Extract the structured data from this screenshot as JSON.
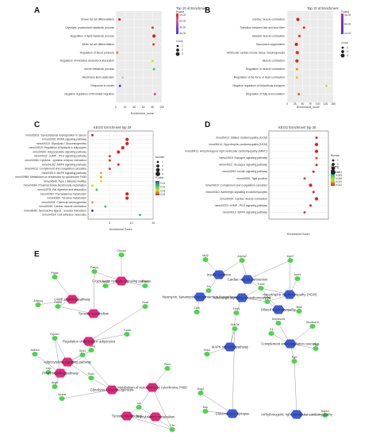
{
  "colors": {
    "dot_low": "#e02020",
    "dot_mid_orange": "#f0a020",
    "dot_mid_yellow": "#d8e020",
    "dot_mid_green": "#30d060",
    "dot_high": "#4040e0",
    "pathway_node_pink": "#e0287a",
    "pathway_node_blue": "#3a5ad8",
    "gene_node_green": "#4ad64a",
    "edge_gray": "#9a9a9a"
  },
  "chart_data": [
    {
      "panel": "A",
      "type": "scatter",
      "title": "Top 10 of Enrichment",
      "xlabel": "Enrichment_score",
      "ylabel": "",
      "xlim": [
        0,
        100
      ],
      "xticks": [
        "0",
        "20",
        "40",
        "60",
        "80",
        "100"
      ],
      "grid": true,
      "categories": [
        "Brown fat cell differentiation",
        "Glycolytic process/cell metabolic process",
        "Regulation of lipid metabolic process",
        "White fat cell differentiation",
        "Regulation of blood pressure",
        "Regulation of intestinal cholesterol absorption",
        "Amine metabolic process",
        "Membrane lipid catabolism",
        "Response to insulin",
        "Negative regulation of fibroblast migration"
      ],
      "values": [
        8,
        80,
        83,
        82,
        3,
        80,
        83,
        15,
        9,
        85
      ],
      "dot_colors": [
        "#e02020",
        "#e03a20",
        "#e02020",
        "#e04020",
        "#f09020",
        "#e0e020",
        "#30d060",
        "#c8c8c8",
        "#4040e0",
        "#e040a0"
      ],
      "dot_sizes": [
        1,
        1,
        2,
        1,
        1,
        1,
        1,
        1,
        1,
        1
      ],
      "legend_title": "P.value",
      "legend_ticks": [
        "1e-02",
        "2e-02",
        "3e-02",
        "4e-02"
      ],
      "size_title": "Count",
      "size_ticks": [
        "1",
        "2",
        "3"
      ]
    },
    {
      "panel": "B",
      "type": "scatter",
      "title": "Top 10 of Enrichment",
      "xlabel": "Enrichment_score",
      "ylabel": "",
      "xlim": [
        0,
        150
      ],
      "xticks": [
        "0",
        "25",
        "50",
        "75",
        "100",
        "125",
        "150"
      ],
      "grid": true,
      "categories": [
        "Cardiac muscle contraction",
        "Transition between fast and slow fiber",
        "Skeletal muscle contraction",
        "Sarcomere organization",
        "Ventricular cardiac muscle tissue morphogenesis",
        "Muscle contraction",
        "Regulation of muscle contraction",
        "Regulation of the force of heart contraction",
        "Negative regulation of intracellular transport",
        "Regulation of fatty acid oxidation"
      ],
      "values": [
        35,
        55,
        40,
        30,
        33,
        32,
        32,
        32,
        128,
        38
      ],
      "dot_colors": [
        "#e02020",
        "#e02020",
        "#e02020",
        "#e02020",
        "#e03020",
        "#e03020",
        "#f09020",
        "#f0c020",
        "#d8e020",
        "#e06020"
      ],
      "dot_sizes": [
        2,
        1,
        1,
        2,
        2,
        2,
        1,
        1,
        1,
        1
      ],
      "legend_title": "P.value",
      "legend_ticks": [
        "4e-03",
        "8e-03",
        "1e-02"
      ],
      "size_title": "Count",
      "size_ticks": [
        "2",
        "3",
        "4"
      ]
    },
    {
      "panel": "C",
      "type": "scatter",
      "title": "KEGG Enrichment top 20",
      "xlabel": "Enrichment Score",
      "ylabel": "",
      "xlim": [
        0,
        15
      ],
      "xticks": [
        "5",
        "10",
        "15"
      ],
      "grid": true,
      "categories": [
        "mmu05202: Transcriptional misregulation in cancer",
        "mmu03320: PPAR signaling pathway",
        "mmu00010: Glycolysis / Gluconeogenesis",
        "mmu04923: Regulation of lipolysis in adipocytes",
        "mmu04920: Adipocytokine signaling pathway",
        "mmu04022: cGMP - PKG signaling pathway",
        "mmu04060: Cytokine - cytokine receptor interaction",
        "mmu04152: AMPK signaling pathway",
        "mmu04610: Complement and coagulation cascades",
        "mmu04010: MAPK signaling pathway",
        "mmu00980: Metabolism of xenobiotics by cytochrome P450",
        "mmu04940: Type I diabetes mellitus",
        "mmu04964: Proximal tubule bicarbonate reclamation",
        "mmu04975: Fat digestion and absorption",
        "mmu00360: Phenylalanine metabolism",
        "mmu00350: Tyrosine metabolism",
        "mmu05204: Chemical carcinogenesis",
        "mmu04260: Cardiac muscle contraction",
        "mmu04080: Neuroactive ligand - receptor interaction",
        "mmu04514: Cell adhesion molecules"
      ],
      "values": [
        1,
        9,
        9,
        8,
        7,
        5,
        5,
        7,
        5,
        3,
        3,
        3,
        1,
        2,
        9,
        9,
        1,
        4,
        1,
        12
      ],
      "dot_colors": [
        "#e02020",
        "#e02020",
        "#e02020",
        "#e02020",
        "#e02020",
        "#e04020",
        "#e04020",
        "#e02020",
        "#e04020",
        "#f0a020",
        "#f0a020",
        "#d8e020",
        "#d8e020",
        "#30d060",
        "#e02020",
        "#e02020",
        "#f0a020",
        "#30d060",
        "#4040e0",
        "#30d060"
      ],
      "dot_sizes": [
        1,
        2,
        2,
        2,
        2,
        1,
        1,
        1,
        1,
        1,
        1,
        1,
        1,
        1,
        2,
        2,
        1,
        1,
        1,
        1
      ],
      "legend_title": "P.value",
      "legend_ticks": [
        "0.01",
        "0.02",
        "0.03",
        "0.04"
      ],
      "size_title": "Number",
      "size_ticks": [
        "1",
        "2",
        "3",
        "4"
      ]
    },
    {
      "panel": "D",
      "type": "scatter",
      "title": "KEGG Enrichment top 20",
      "xlabel": "Enrichment Score",
      "ylabel": "",
      "xlim": [
        0,
        10
      ],
      "xticks": [],
      "grid": true,
      "categories": [
        "mmu05410: Dilated cardiomyopathy (DCM)",
        "mmu05414: Hypertrophic cardiomyopathy (HCM)",
        "mmu05412: Arrhythmogenic right ventricular cardiomyopathy (ARVC)",
        "mmu04915: Estrogen signaling pathway",
        "mmu04922: Glucagon signaling pathway",
        "mmu04910: Insulin signaling pathway",
        "mmu04530: Tight junction",
        "mmu04610: Complement and coagulation cascades",
        "mmu05410: Adrenergic signaling in cardiomyocytes",
        "mmu04260: Cardiac muscle contraction",
        "mmu04022: cGMP - PKG signaling pathway",
        "mmu04010: MAPK signaling pathway"
      ],
      "values": [
        8,
        8,
        8,
        8,
        8,
        7.5,
        6,
        7,
        7.5,
        8,
        7,
        6
      ],
      "dot_colors": [
        "#e02020",
        "#e02020",
        "#e02020",
        "#e04020",
        "#e02020",
        "#e02020",
        "#e04020",
        "#e02020",
        "#e02020",
        "#e02020",
        "#e02020",
        "#e04020"
      ],
      "dot_sizes": [
        1,
        2,
        2,
        1,
        1,
        1,
        1,
        2,
        1,
        2,
        1,
        1
      ],
      "legend_title": "P.value",
      "legend_ticks": [
        "0.004",
        "0.006",
        "0.008",
        "0.010",
        "0.012"
      ],
      "size_title": "Number",
      "size_ticks": [
        "1",
        "2",
        "3",
        "4"
      ]
    }
  ],
  "panels": {
    "a": "A",
    "b": "B",
    "c": "C",
    "d": "D",
    "e": "E"
  },
  "network": {
    "pathways": [
      {
        "id": "p1",
        "label": "Tyrosine metabolism",
        "color": "pink"
      },
      {
        "id": "p2",
        "label": "C-type lectin receptor signaling pathway",
        "color": "pink"
      },
      {
        "id": "p3",
        "label": "cAMP signaling pathway",
        "color": "pink"
      },
      {
        "id": "p4",
        "label": "Regulation of lipolysis in adipocytes",
        "color": "pink"
      },
      {
        "id": "p5",
        "label": "Adipocytokine signaling pathway",
        "color": "pink"
      },
      {
        "id": "p6",
        "label": "PPAR signaling pathway",
        "color": "pink"
      },
      {
        "id": "p7",
        "label": "Glycolysis / Gluconeogenesis",
        "color": "pink"
      },
      {
        "id": "p8",
        "label": "Metabolism of xenobiotics by cytochrome P450",
        "color": "pink"
      },
      {
        "id": "p9",
        "label": "Tyrosine metabolism",
        "color": "pink"
      },
      {
        "id": "p10",
        "label": "Phenylalanine metabolism",
        "color": "pink"
      },
      {
        "id": "b1",
        "label": "Insulin secretion",
        "color": "blue"
      },
      {
        "id": "b2",
        "label": "Cardiac muscle contraction",
        "color": "blue"
      },
      {
        "id": "b3",
        "label": "Neomycin, kanamycin and gentamicin biosynthesis",
        "color": "blue"
      },
      {
        "id": "b4",
        "label": "Hypertrophic cardiomyopathy (HCM)",
        "color": "blue"
      },
      {
        "id": "b5",
        "label": "Adrenergic signaling in cardiomyocytes",
        "color": "blue"
      },
      {
        "id": "b6",
        "label": "Dilated cardiomyopathy",
        "color": "blue"
      },
      {
        "id": "b7",
        "label": "MAPK signaling pathway",
        "color": "blue"
      },
      {
        "id": "b8",
        "label": "Complement and coagulation cascades",
        "color": "blue"
      },
      {
        "id": "b9",
        "label": "Glutamatergic synapse",
        "color": "blue"
      },
      {
        "id": "b10",
        "label": "Arrhythmogenic right ventricular cardiomyopathy",
        "color": "blue"
      }
    ],
    "genes": [
      "Ptgds",
      "Adipoq",
      "Cidea",
      "Clec4d",
      "Fabp4",
      "Adrb3",
      "Pck1",
      "Nnat",
      "Tnmd",
      "Cyp2e1",
      "Aldh1a",
      "Lep",
      "Hpgd",
      "Scd1",
      "Gpd1",
      "Pparg",
      "Acaca",
      "Plin1",
      "Lpl",
      "Cfd",
      "Myl2",
      "Atp2a2",
      "Myh7",
      "Actc1",
      "Tnnt2",
      "Ttn",
      "Tpm1",
      "Myl3",
      "Actn2",
      "Ckm",
      "Serpina1c",
      "Serpina1d",
      "Fgg",
      "Fga",
      "C3",
      "Grin2a",
      "Gria1",
      "Dsg2",
      "Dsp",
      "Hspb1"
    ]
  }
}
